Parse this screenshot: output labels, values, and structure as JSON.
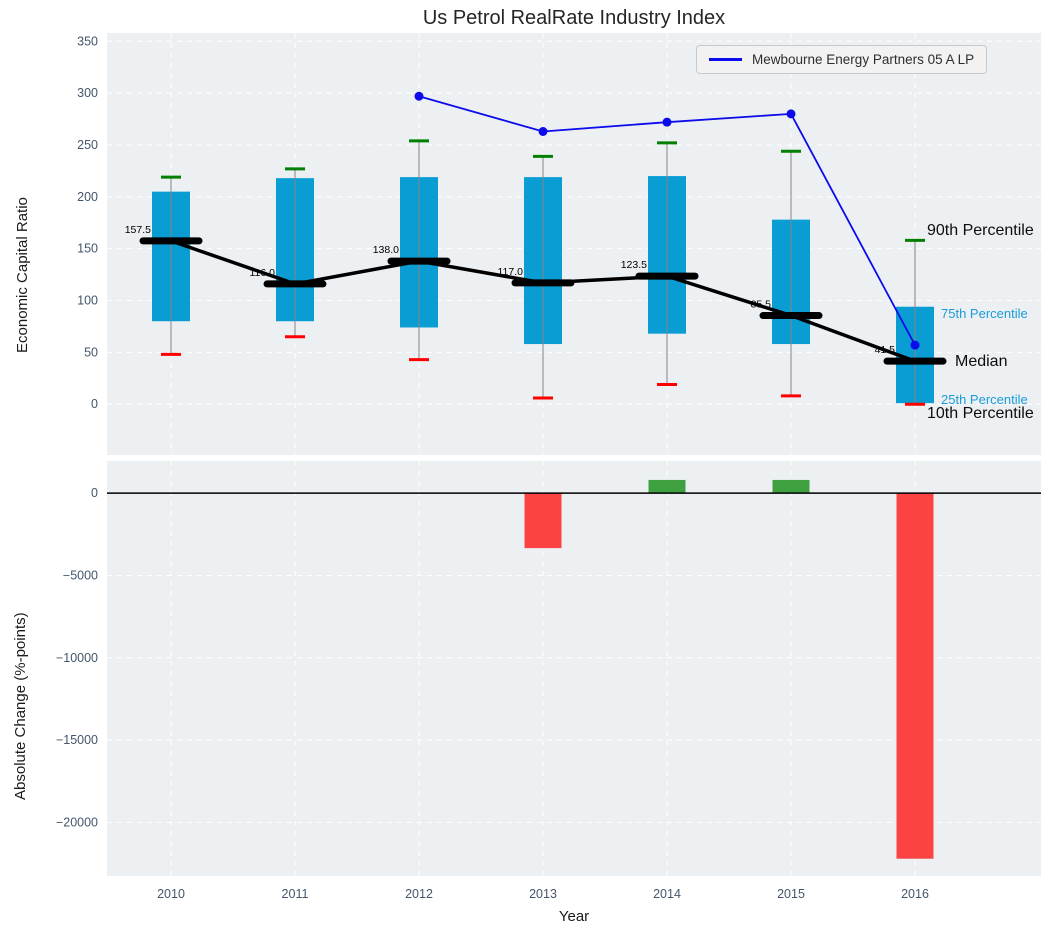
{
  "title": "Us Petrol RealRate Industry Index",
  "legend": {
    "label": "Mewbourne Energy Partners 05 A LP"
  },
  "colors": {
    "box": "#0a9dd4",
    "median": "#000000",
    "company_line": "#0b0beb",
    "cap_high": "#007f00",
    "cap_low": "#ff0000",
    "bar_negative": "#fc4343",
    "bar_positive": "#3fa03f",
    "panel_bg": "#edf0f2",
    "grid": "#ffffff",
    "whisker": "#858585",
    "tick_text": "#44566b",
    "percentile_cyan": "#1a9cd8",
    "zero_line": "#000000"
  },
  "chart_data": [
    {
      "type": "boxplot+line",
      "title": "Us Petrol RealRate Industry Index",
      "categories": [
        "2010",
        "2011",
        "2012",
        "2013",
        "2014",
        "2015",
        "2016"
      ],
      "ylabel": "Economic Capital Ratio",
      "xlabel": "Year",
      "ylim": [
        -49,
        358
      ],
      "yticks": [
        0,
        50,
        100,
        150,
        200,
        250,
        300,
        350
      ],
      "grid": true,
      "legend_position": "upper right",
      "series": [
        {
          "name": "90th Percentile",
          "values": [
            219,
            227,
            254,
            239,
            252,
            244,
            158
          ]
        },
        {
          "name": "75th Percentile",
          "values": [
            205,
            218,
            219,
            219,
            220,
            178,
            94
          ]
        },
        {
          "name": "Median",
          "values": [
            157.5,
            116.0,
            138.0,
            117.0,
            123.5,
            85.5,
            41.5
          ]
        },
        {
          "name": "25th Percentile",
          "values": [
            80,
            80,
            74,
            58,
            68,
            58,
            1
          ]
        },
        {
          "name": "10th Percentile",
          "values": [
            48,
            65,
            43,
            6,
            19,
            8,
            0
          ]
        },
        {
          "name": "Mewbourne Energy Partners 05 A LP",
          "values": [
            null,
            null,
            297,
            263,
            272,
            280,
            57
          ]
        }
      ],
      "median_labels": [
        "157.5",
        "116.0",
        "138.0",
        "117.0",
        "123.5",
        "85.5",
        "41.5"
      ],
      "annotations": [
        {
          "text": "90th Percentile",
          "style": "large-black",
          "x": 927,
          "y": 222
        },
        {
          "text": "75th Percentile",
          "style": "small-cyan",
          "x": 941,
          "y": 306
        },
        {
          "text": "Median",
          "style": "large-black",
          "x": 955,
          "y": 353
        },
        {
          "text": "25th Percentile",
          "style": "small-cyan",
          "x": 941,
          "y": 392
        },
        {
          "text": "10th Percentile",
          "style": "large-black",
          "x": 927,
          "y": 405
        }
      ]
    },
    {
      "type": "bar",
      "categories": [
        "2010",
        "2011",
        "2012",
        "2013",
        "2014",
        "2015",
        "2016"
      ],
      "values": [
        null,
        null,
        null,
        -3340,
        800,
        800,
        -22200
      ],
      "ylabel": "Absolute Change (%-points)",
      "xlabel": "Year",
      "ylim": [
        -23250,
        1950
      ],
      "yticks": [
        0,
        -5000,
        -10000,
        -15000,
        -20000
      ],
      "grid": true
    }
  ]
}
